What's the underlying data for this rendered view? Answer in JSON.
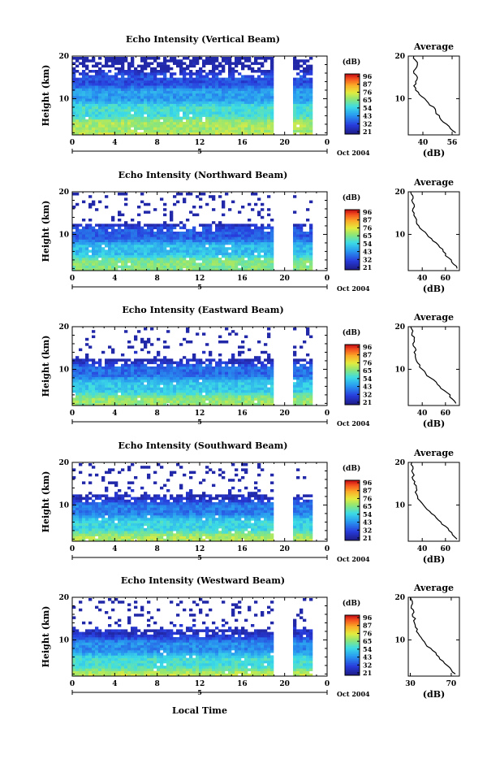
{
  "figure": {
    "xlabel": "Local Time",
    "date_label": "Oct 2004",
    "day_marker": "5",
    "colorbar_unit": "(dB)",
    "colorbar_ticks": [
      "96",
      "87",
      "76",
      "65",
      "54",
      "43",
      "32",
      "21"
    ],
    "average_title": "Average",
    "average_xunit": "(dB)",
    "ylabel": "Height (km)"
  },
  "chart_data": [
    {
      "type": "heatmap",
      "title": "Echo Intensity (Vertical Beam)",
      "ylabel": "Height (km)",
      "xlabel": "Local Time",
      "x_ticks": [
        "0",
        "4",
        "8",
        "12",
        "16",
        "20",
        "0"
      ],
      "y_ticks": [
        "10",
        "20"
      ],
      "xlim": [
        0,
        24
      ],
      "ylim": [
        1.5,
        20
      ],
      "data_gap": [
        19,
        20.5
      ],
      "data_end": 22.5,
      "colorbar": {
        "unit": "(dB)",
        "ticks": [
          96,
          87,
          76,
          65,
          54,
          43,
          32,
          21
        ]
      },
      "average_profile": {
        "title": "Average",
        "xlabel": "(dB)",
        "x_ticks": [
          "40",
          "56"
        ],
        "xlim": [
          32,
          60
        ],
        "heights": [
          2,
          3,
          4,
          5,
          6,
          7,
          8,
          9,
          10,
          11,
          12,
          13,
          14,
          15,
          16,
          17,
          18,
          19,
          20
        ],
        "values": [
          58,
          55,
          53,
          50,
          49,
          47,
          46,
          43,
          41,
          38,
          36,
          35,
          36,
          37,
          35,
          36,
          37,
          36,
          35
        ]
      }
    },
    {
      "type": "heatmap",
      "title": "Echo Intensity (Northward Beam)",
      "ylabel": "Height (km)",
      "xlabel": "Local Time",
      "x_ticks": [
        "0",
        "4",
        "8",
        "12",
        "16",
        "20",
        "0"
      ],
      "y_ticks": [
        "10",
        "20"
      ],
      "xlim": [
        0,
        24
      ],
      "ylim": [
        1.5,
        20
      ],
      "data_gap": [
        19,
        20.5
      ],
      "data_end": 22.5,
      "colorbar": {
        "unit": "(dB)",
        "ticks": [
          96,
          87,
          76,
          65,
          54,
          43,
          32,
          21
        ]
      },
      "average_profile": {
        "title": "Average",
        "xlabel": "(dB)",
        "x_ticks": [
          "40",
          "60"
        ],
        "xlim": [
          28,
          72
        ],
        "heights": [
          2,
          3,
          4,
          5,
          6,
          7,
          8,
          9,
          10,
          11,
          12,
          13,
          14,
          15,
          16,
          17,
          18,
          19,
          20
        ],
        "values": [
          70,
          67,
          65,
          60,
          58,
          55,
          52,
          48,
          44,
          40,
          37,
          35,
          34,
          33,
          32,
          33,
          31,
          32,
          30
        ]
      }
    },
    {
      "type": "heatmap",
      "title": "Echo Intensity (Eastward Beam)",
      "ylabel": "Height (km)",
      "xlabel": "Local Time",
      "x_ticks": [
        "0",
        "4",
        "8",
        "12",
        "16",
        "20",
        "0"
      ],
      "y_ticks": [
        "10",
        "20"
      ],
      "xlim": [
        0,
        24
      ],
      "ylim": [
        1.5,
        20
      ],
      "data_gap": [
        19,
        20.5
      ],
      "data_end": 22.5,
      "colorbar": {
        "unit": "(dB)",
        "ticks": [
          96,
          87,
          76,
          65,
          54,
          43,
          32,
          21
        ]
      },
      "average_profile": {
        "title": "Average",
        "xlabel": "(dB)",
        "x_ticks": [
          "40",
          "60"
        ],
        "xlim": [
          28,
          72
        ],
        "heights": [
          2,
          3,
          4,
          5,
          6,
          7,
          8,
          9,
          10,
          11,
          12,
          13,
          14,
          15,
          16,
          17,
          18,
          19,
          20
        ],
        "values": [
          69,
          66,
          64,
          59,
          55,
          52,
          47,
          43,
          40,
          38,
          35,
          34,
          33,
          34,
          32,
          33,
          31,
          32,
          30
        ]
      }
    },
    {
      "type": "heatmap",
      "title": "Echo Intensity (Southward Beam)",
      "ylabel": "Height (km)",
      "xlabel": "Local Time",
      "x_ticks": [
        "0",
        "4",
        "8",
        "12",
        "16",
        "20",
        "0"
      ],
      "y_ticks": [
        "10",
        "20"
      ],
      "xlim": [
        0,
        24
      ],
      "ylim": [
        1.5,
        20
      ],
      "data_gap": [
        19,
        20.5
      ],
      "data_end": 22.5,
      "colorbar": {
        "unit": "(dB)",
        "ticks": [
          96,
          87,
          76,
          65,
          54,
          43,
          32,
          21
        ]
      },
      "average_profile": {
        "title": "Average",
        "xlabel": "(dB)",
        "x_ticks": [
          "40",
          "60"
        ],
        "xlim": [
          28,
          72
        ],
        "heights": [
          2,
          3,
          4,
          5,
          6,
          7,
          8,
          9,
          10,
          11,
          12,
          13,
          14,
          15,
          16,
          17,
          18,
          19,
          20
        ],
        "values": [
          70,
          66,
          63,
          60,
          56,
          52,
          48,
          44,
          41,
          38,
          36,
          34,
          35,
          33,
          32,
          33,
          31,
          32,
          31
        ]
      }
    },
    {
      "type": "heatmap",
      "title": "Echo Intensity (Westward Beam)",
      "ylabel": "Height (km)",
      "xlabel": "Local Time",
      "x_ticks": [
        "0",
        "4",
        "8",
        "12",
        "16",
        "20",
        "0"
      ],
      "y_ticks": [
        "10",
        "20"
      ],
      "xlim": [
        0,
        24
      ],
      "ylim": [
        1.5,
        20
      ],
      "data_gap": [
        19,
        20.5
      ],
      "data_end": 22.5,
      "colorbar": {
        "unit": "(dB)",
        "ticks": [
          96,
          87,
          76,
          65,
          54,
          43,
          32,
          21
        ]
      },
      "average_profile": {
        "title": "Average",
        "xlabel": "(dB)",
        "x_ticks": [
          "30",
          "70"
        ],
        "xlim": [
          28,
          78
        ],
        "heights": [
          2,
          3,
          4,
          5,
          6,
          7,
          8,
          9,
          10,
          11,
          12,
          13,
          14,
          15,
          16,
          17,
          18,
          19,
          20
        ],
        "values": [
          74,
          70,
          66,
          62,
          58,
          55,
          50,
          45,
          42,
          39,
          36,
          35,
          34,
          35,
          32,
          33,
          31,
          32,
          30
        ]
      }
    }
  ]
}
